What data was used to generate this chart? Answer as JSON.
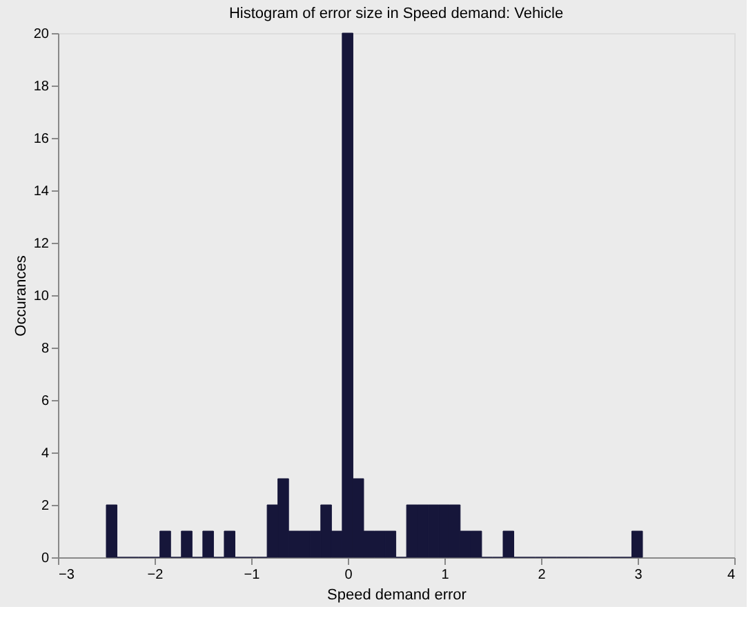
{
  "chart_data": {
    "type": "histogram",
    "title": "Histogram of error size in Speed demand: Vehicle",
    "xlabel": "Speed demand error",
    "ylabel": "Occurances",
    "bins": [
      -2.5,
      -2.389,
      -2.278,
      -2.167,
      -2.056,
      -1.945,
      -1.834,
      -1.723,
      -1.612,
      -1.501,
      -1.39,
      -1.279,
      -1.168,
      -1.057,
      -0.946,
      -0.835,
      -0.724,
      -0.613,
      -0.502,
      -0.391,
      -0.28,
      -0.169,
      -0.058,
      0.053,
      0.164,
      0.275,
      0.386,
      0.497,
      0.608,
      0.719,
      0.83,
      0.941,
      1.052,
      1.163,
      1.274,
      1.385,
      1.496,
      1.607,
      1.718,
      1.829,
      1.94,
      2.051,
      2.162,
      2.273,
      2.384,
      2.495,
      2.606,
      2.717,
      2.828,
      2.939,
      3.05
    ],
    "values": [
      2,
      0,
      0,
      0,
      0,
      1,
      0,
      1,
      0,
      1,
      0,
      1,
      0,
      0,
      0,
      2,
      3,
      1,
      1,
      1,
      2,
      1,
      20,
      3,
      1,
      1,
      1,
      0,
      2,
      2,
      2,
      2,
      2,
      1,
      1,
      0,
      0,
      1,
      0,
      0,
      0,
      0,
      0,
      0,
      0,
      0,
      0,
      0,
      0,
      1
    ],
    "color": "#16163a",
    "xlim": [
      -3,
      4
    ],
    "xticks": [
      -3,
      -2,
      -1,
      0,
      1,
      2,
      3,
      4
    ],
    "ylim": [
      0,
      20
    ],
    "yticks": [
      0,
      2,
      4,
      6,
      8,
      10,
      12,
      14,
      16,
      18,
      20
    ],
    "grid": false
  }
}
